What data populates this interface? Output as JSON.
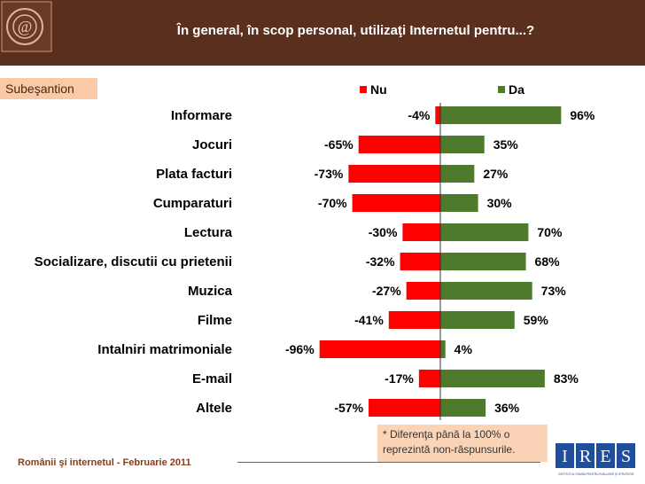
{
  "header": {
    "title": "În general, în scop personal, utilizaţi Internetul pentru...?"
  },
  "subtitle": "Subeşantion",
  "note": "* Diferenţa până la 100% o reprezintă non-răspunsurile.",
  "footer": "Românii şi internetul - Februarie 2011",
  "logo": {
    "letters": [
      "I",
      "R",
      "E",
      "S"
    ],
    "caption": "INSTITUTUL ROMÂN PENTRU EVALUARE ŞI STRATEGIE"
  },
  "colors": {
    "header_bg": "#5a2f1d",
    "nu": "#ff0000",
    "da": "#4e7a2c",
    "note_bg": "#fbd3b7",
    "ires_blue": "#1f4e9c"
  },
  "chart_data": {
    "type": "bar",
    "orientation": "horizontal-diverging",
    "title": "În general, în scop personal, utilizaţi Internetul pentru...?",
    "categories": [
      "Informare",
      "Jocuri",
      "Plata facturi",
      "Cumparaturi",
      "Lectura",
      "Socializare, discutii cu prietenii",
      "Muzica",
      "Filme",
      "Intalniri matrimoniale",
      "E-mail",
      "Altele"
    ],
    "series": [
      {
        "name": "Nu",
        "values": [
          -4,
          -65,
          -73,
          -70,
          -30,
          -32,
          -27,
          -41,
          -96,
          -17,
          -57
        ],
        "labels": [
          "-4%",
          "-65%",
          "-73%",
          "-70%",
          "-30%",
          "-32%",
          "-27%",
          "-41%",
          "-96%",
          "-17%",
          "-57%"
        ]
      },
      {
        "name": "Da",
        "values": [
          96,
          35,
          27,
          30,
          70,
          68,
          73,
          59,
          4,
          83,
          36
        ],
        "labels": [
          "96%",
          "35%",
          "27%",
          "30%",
          "70%",
          "68%",
          "73%",
          "59%",
          "4%",
          "83%",
          "36%"
        ]
      }
    ],
    "xlim": [
      -100,
      100
    ],
    "legend": "top"
  }
}
